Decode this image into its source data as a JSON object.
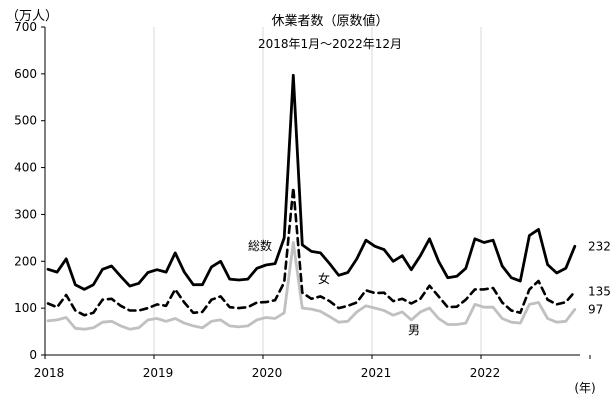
{
  "chart_data": {
    "type": "line",
    "title": "休業者数（原数値）",
    "subtitle": "2018年1月～2022年12月",
    "y_unit_label": "（万人）",
    "x_unit_label": "(年)",
    "ylim": [
      0,
      700
    ],
    "y_ticks": [
      0,
      100,
      200,
      300,
      400,
      500,
      600,
      700
    ],
    "x_tick_labels": [
      "2018",
      "2019",
      "2020",
      "2021",
      "2022"
    ],
    "grid": "vertical lines at each year boundary",
    "series": [
      {
        "name": "総数",
        "end_label": "232",
        "color": "#000000",
        "style": "solid",
        "values": [
          183,
          177,
          205,
          150,
          140,
          150,
          183,
          190,
          168,
          147,
          153,
          176,
          182,
          177,
          218,
          177,
          150,
          150,
          188,
          200,
          162,
          160,
          162,
          185,
          192,
          195,
          250,
          597,
          235,
          221,
          218,
          195,
          170,
          176,
          205,
          245,
          232,
          225,
          200,
          212,
          182,
          212,
          248,
          200,
          165,
          168,
          185,
          248,
          240,
          245,
          190,
          165,
          158,
          255,
          268,
          193,
          175,
          185,
          232
        ]
      },
      {
        "name": "女",
        "end_label": "135",
        "color": "#000000",
        "style": "dashed",
        "values": [
          110,
          102,
          128,
          95,
          85,
          90,
          118,
          120,
          105,
          95,
          95,
          100,
          108,
          105,
          140,
          112,
          90,
          92,
          118,
          125,
          102,
          100,
          102,
          112,
          113,
          117,
          155,
          357,
          133,
          120,
          125,
          115,
          100,
          105,
          112,
          138,
          132,
          133,
          115,
          120,
          110,
          120,
          148,
          125,
          102,
          103,
          118,
          140,
          140,
          143,
          112,
          95,
          90,
          140,
          158,
          118,
          108,
          113,
          135
        ]
      },
      {
        "name": "男",
        "end_label": "97",
        "color": "#c0c0c0",
        "style": "solid",
        "values": [
          73,
          75,
          80,
          57,
          55,
          58,
          70,
          72,
          62,
          55,
          58,
          75,
          78,
          72,
          78,
          68,
          62,
          58,
          72,
          75,
          62,
          60,
          62,
          75,
          80,
          78,
          90,
          240,
          100,
          98,
          93,
          82,
          70,
          72,
          92,
          105,
          100,
          95,
          85,
          92,
          75,
          92,
          100,
          78,
          65,
          65,
          68,
          108,
          102,
          102,
          78,
          70,
          68,
          108,
          112,
          78,
          70,
          72,
          97
        ]
      }
    ]
  }
}
